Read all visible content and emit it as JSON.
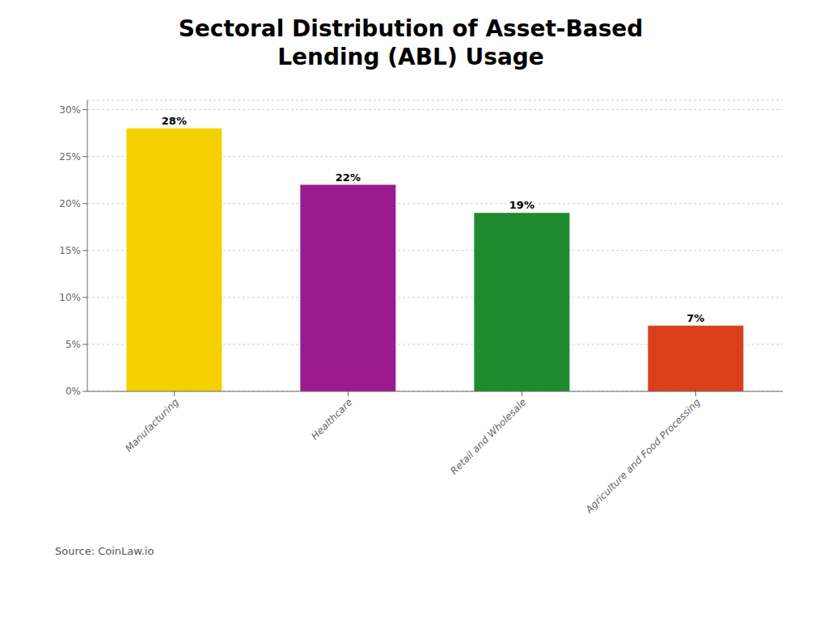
{
  "chart_data": {
    "type": "bar",
    "title": "Sectoral Distribution of Asset-Based\nLending (ABL) Usage",
    "categories": [
      "Manufacturing",
      "Healthcare",
      "Retail and Wholesale",
      "Agriculture and Food Processing"
    ],
    "values": [
      28,
      22,
      19,
      7
    ],
    "value_labels": [
      "28%",
      "22%",
      "19%",
      "7%"
    ],
    "data_labels": true,
    "colors": [
      "#F5D000",
      "#9B1B8E",
      "#1E8B2E",
      "#D93F1A"
    ],
    "ylim": [
      0,
      31
    ],
    "yticks": [
      {
        "value": 0,
        "label": "0%"
      },
      {
        "value": 5,
        "label": "5%"
      },
      {
        "value": 10,
        "label": "10%"
      },
      {
        "value": 15,
        "label": "15%"
      },
      {
        "value": 20,
        "label": "20%"
      },
      {
        "value": 25,
        "label": "25%"
      },
      {
        "value": 30,
        "label": "30%"
      }
    ],
    "grid": true,
    "annotations": [
      "Source: CoinLaw.io"
    ]
  }
}
